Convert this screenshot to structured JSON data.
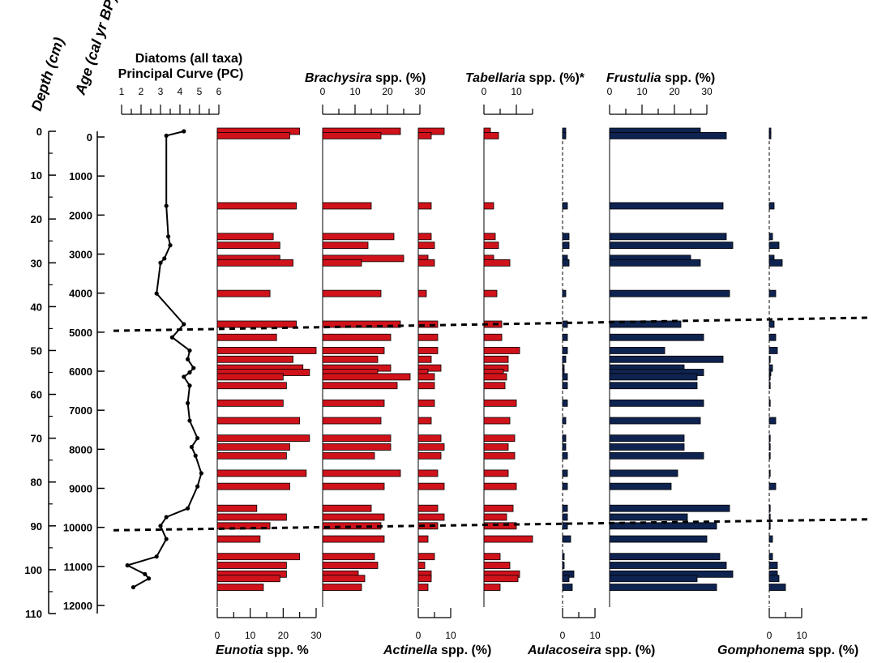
{
  "labels": {
    "depth_axis": "Depth (cm)",
    "age_axis": "Age (cal yr BP)",
    "pc_line1": "Diatoms (all taxa)",
    "pc_line2": "Principal Curve (PC)"
  },
  "colors": {
    "red": "#d0121b",
    "navy": "#0f2350",
    "line": "#000000"
  },
  "chart_data": {
    "type": "bar",
    "description_units": "horizontal percentage bars vs depth (stratigraphic diagram)",
    "depth_ticks": [
      0,
      10,
      20,
      30,
      40,
      50,
      60,
      70,
      80,
      90,
      100,
      110
    ],
    "age_ticks": [
      0,
      1000,
      2000,
      3000,
      4000,
      5000,
      6000,
      7000,
      8000,
      9000,
      10000,
      11000,
      12000
    ],
    "depth_range": [
      0,
      110
    ],
    "age_at_depth": [
      [
        0,
        0
      ],
      [
        10,
        1000
      ],
      [
        20,
        2000
      ],
      [
        30,
        3000
      ],
      [
        40,
        4000
      ],
      [
        50,
        5000
      ],
      [
        60,
        6000
      ],
      [
        70,
        7000
      ],
      [
        80,
        8000
      ],
      [
        90,
        9000
      ],
      [
        100,
        10000
      ],
      [
        110,
        11000
      ],
      [
        120,
        12000
      ]
    ],
    "depths": [
      0,
      1,
      17,
      24,
      26,
      29,
      30,
      37,
      44,
      47,
      50,
      52,
      54,
      55,
      56,
      58,
      62,
      66,
      70,
      72,
      74,
      78,
      81,
      86,
      88,
      90,
      93,
      97,
      99,
      101,
      102,
      104
    ],
    "zone_lines": [
      {
        "left": [
          -18,
          45.5
        ],
        "right": [
          1075,
          42.5
        ]
      },
      {
        "left": [
          -18,
          91
        ],
        "right": [
          1075,
          88.5
        ]
      }
    ],
    "principal_curve": {
      "title": "Principal Curve (PC)",
      "xlim": [
        1,
        6
      ],
      "ticks": [
        1,
        2,
        3,
        4,
        5,
        6
      ],
      "depth": [
        0,
        1,
        17,
        24,
        26,
        29,
        30,
        37,
        44,
        47,
        50,
        52,
        54,
        55,
        56,
        58,
        62,
        66,
        70,
        72,
        74,
        78,
        81,
        86,
        88,
        90,
        93,
        97,
        99,
        101,
        102,
        104
      ],
      "values": [
        4.2,
        3.3,
        3.3,
        3.4,
        3.5,
        3.2,
        3.0,
        2.8,
        4.2,
        3.6,
        4.5,
        4.4,
        4.7,
        4.5,
        4.2,
        4.5,
        4.4,
        4.5,
        4.9,
        4.6,
        4.8,
        5.1,
        4.9,
        4.4,
        3.3,
        3.0,
        3.3,
        2.8,
        1.3,
        2.2,
        2.4,
        1.6
      ]
    },
    "panels": [
      {
        "name": "Eunotia spp. %",
        "title_italic": "Eunotia",
        "title_rest": " spp. %",
        "color": "red",
        "xmax": 30,
        "ticks": [
          0,
          10,
          20,
          30
        ],
        "axis_at": "bottom",
        "depth": [
          0,
          1,
          17,
          24,
          26,
          29,
          30,
          37,
          44,
          47,
          50,
          52,
          54,
          55,
          56,
          58,
          62,
          66,
          70,
          72,
          74,
          78,
          81,
          86,
          88,
          90,
          93,
          97,
          99,
          101,
          102,
          104
        ],
        "values": [
          25,
          22,
          24,
          17,
          19,
          19,
          23,
          16,
          24,
          18,
          30,
          23,
          26,
          28,
          20,
          21,
          20,
          25,
          28,
          22,
          21,
          27,
          22,
          12,
          21,
          16,
          13,
          25,
          21,
          21,
          19,
          14
        ]
      },
      {
        "name": "Brachysira spp. (%)",
        "title_italic": "Brachysira",
        "title_rest": " spp. (%)",
        "color": "red",
        "xmax": 30,
        "ticks": [
          0,
          10,
          20,
          30
        ],
        "axis_at": "top",
        "depth": [
          0,
          1,
          17,
          24,
          26,
          29,
          30,
          37,
          44,
          47,
          50,
          52,
          54,
          55,
          56,
          58,
          62,
          66,
          70,
          72,
          74,
          78,
          81,
          86,
          88,
          90,
          93,
          97,
          99,
          101,
          102,
          104
        ],
        "values": [
          24,
          18,
          15,
          22,
          14,
          25,
          12,
          18,
          24,
          21,
          19,
          17,
          21,
          17,
          27,
          23,
          19,
          18,
          21,
          21,
          16,
          24,
          19,
          15,
          19,
          18,
          19,
          16,
          17,
          11,
          13,
          12
        ]
      },
      {
        "name": "Actinella spp. (%)",
        "title_italic": "Actinella",
        "title_rest": " spp. (%)",
        "color": "red",
        "xmax": 10,
        "ticks": [
          0,
          10
        ],
        "axis_at": "bottom",
        "depth": [
          0,
          1,
          17,
          24,
          26,
          29,
          30,
          37,
          44,
          47,
          50,
          52,
          54,
          55,
          56,
          58,
          62,
          66,
          70,
          72,
          74,
          78,
          81,
          86,
          88,
          90,
          93,
          97,
          99,
          101,
          102,
          104
        ],
        "values": [
          8,
          4,
          4,
          4,
          5,
          3,
          5,
          2.5,
          6,
          6,
          6,
          4,
          7,
          3,
          5,
          5,
          5,
          4,
          7,
          8,
          7,
          6,
          8,
          6,
          8,
          6,
          3,
          5,
          2,
          4,
          4,
          3
        ]
      },
      {
        "name": "Tabellaria spp. (%)*",
        "title_italic": "Tabellaria",
        "title_rest": " spp. (%)*",
        "color": "red",
        "xmax": 15,
        "ticks": [
          0,
          10
        ],
        "axis_at": "top",
        "depth": [
          0,
          1,
          17,
          24,
          26,
          29,
          30,
          37,
          44,
          47,
          50,
          52,
          54,
          55,
          56,
          58,
          62,
          66,
          70,
          72,
          74,
          78,
          81,
          86,
          88,
          90,
          93,
          97,
          99,
          101,
          102,
          104
        ],
        "values": [
          2,
          4.5,
          3,
          3.5,
          4.5,
          3,
          8,
          4,
          5.5,
          5.5,
          11,
          7.5,
          7.5,
          6,
          7,
          6.5,
          10,
          8,
          9.5,
          7.5,
          9.5,
          7.5,
          10,
          9,
          7,
          10,
          15,
          5,
          8,
          11,
          10.5,
          5
        ]
      },
      {
        "name": "Aulacoseira spp. (%)",
        "title_italic": "Aulacoseira",
        "title_rest": " spp. (%)",
        "color": "navy",
        "xmax": 10,
        "ticks": [
          0,
          10
        ],
        "axis_at": "bottom",
        "depth": [
          0,
          1,
          17,
          24,
          26,
          29,
          30,
          37,
          44,
          47,
          50,
          52,
          54,
          55,
          56,
          58,
          62,
          66,
          70,
          72,
          74,
          78,
          81,
          86,
          88,
          90,
          93,
          97,
          99,
          101,
          102,
          104
        ],
        "values": [
          1,
          1,
          1.5,
          2,
          2,
          1.5,
          2,
          1,
          1.5,
          1.5,
          1.5,
          1,
          0.5,
          0.5,
          1.5,
          1.5,
          1.5,
          1,
          1,
          1,
          1.5,
          1.5,
          1.5,
          1.5,
          1.5,
          1.5,
          2.5,
          0.5,
          0.5,
          3.5,
          2,
          3
        ]
      },
      {
        "name": "Frustulia spp. (%)",
        "title_italic": "Frustulia",
        "title_rest": " spp. (%)",
        "color": "navy",
        "xmax": 30,
        "ticks": [
          0,
          10,
          20,
          30
        ],
        "axis_at": "top",
        "depth": [
          0,
          1,
          17,
          24,
          26,
          29,
          30,
          37,
          44,
          47,
          50,
          52,
          54,
          55,
          56,
          58,
          62,
          66,
          70,
          72,
          74,
          78,
          81,
          86,
          88,
          90,
          93,
          97,
          99,
          101,
          102,
          104
        ],
        "values": [
          28,
          36,
          35,
          36,
          38,
          25,
          28,
          37,
          22,
          29,
          17,
          35,
          23,
          29,
          27,
          27,
          29,
          28,
          23,
          23,
          29,
          21,
          19,
          37,
          24,
          33,
          30,
          34,
          36,
          38,
          27,
          33
        ]
      },
      {
        "name": "Gomphonema spp. (%)",
        "title_italic": "Gomphonema",
        "title_rest": " spp. (%)",
        "color": "navy",
        "xmax": 10,
        "ticks": [
          0,
          10
        ],
        "axis_at": "bottom",
        "depth": [
          0,
          1,
          17,
          24,
          26,
          29,
          30,
          37,
          44,
          47,
          50,
          52,
          54,
          55,
          56,
          58,
          62,
          66,
          70,
          72,
          74,
          78,
          81,
          86,
          88,
          90,
          93,
          97,
          99,
          101,
          102,
          104
        ],
        "values": [
          0.5,
          0.5,
          1.5,
          1,
          3,
          1.5,
          4,
          2,
          1.5,
          2,
          2.5,
          0.3,
          1,
          0.5,
          0.3,
          0.3,
          0.3,
          2,
          0.3,
          0.3,
          0.3,
          0.3,
          2,
          0.3,
          0.3,
          0.3,
          1,
          1,
          2.5,
          2.5,
          3,
          5
        ]
      }
    ]
  }
}
